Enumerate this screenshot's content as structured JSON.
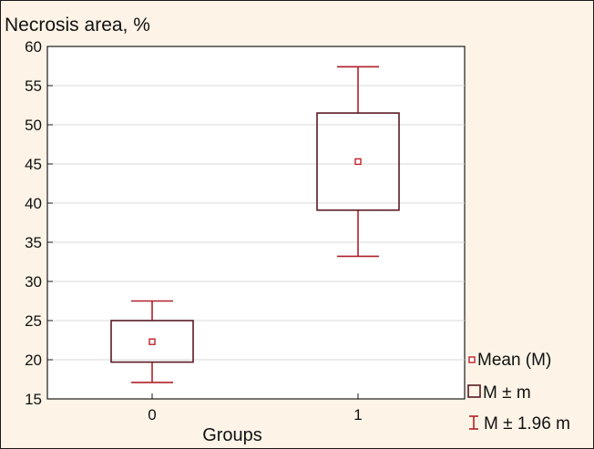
{
  "chart_data": {
    "type": "box",
    "title": "Necrosis area, %",
    "xlabel": "Groups",
    "ylabel": "",
    "ylim": [
      15,
      60
    ],
    "yticks": [
      15,
      20,
      25,
      30,
      35,
      40,
      45,
      50,
      55,
      60
    ],
    "categories": [
      "0",
      "1"
    ],
    "groups": [
      {
        "category": "0",
        "mean": 22.3,
        "mean_minus_m": 19.7,
        "mean_plus_m": 25.0,
        "mean_minus_1_96m": 17.1,
        "mean_plus_1_96m": 27.5
      },
      {
        "category": "1",
        "mean": 45.3,
        "mean_minus_m": 39.1,
        "mean_plus_m": 51.5,
        "mean_minus_1_96m": 33.2,
        "mean_plus_1_96m": 57.4
      }
    ],
    "grid": true,
    "legend_position": "bottom-right",
    "legend": [
      {
        "marker": "point",
        "label": "Mean (M)"
      },
      {
        "marker": "box",
        "label": "M ± m"
      },
      {
        "marker": "whisker",
        "label": "M ± 1.96 m"
      }
    ],
    "colors": {
      "background": "#fdf4e7",
      "plot_area": "#ffffff",
      "box": "#5a1a24",
      "whisker": "#b0202a",
      "mean": "#c0202a",
      "grid": "#d9d9d9"
    }
  }
}
